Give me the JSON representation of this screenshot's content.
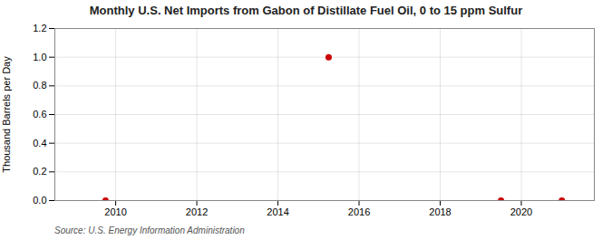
{
  "chart_data": {
    "type": "scatter",
    "title": "Monthly U.S. Net Imports from Gabon of Distillate Fuel Oil, 0 to 15 ppm Sulfur",
    "ylabel": "Thousand Barrels per Day",
    "annotation": "Source: U.S. Energy Information Administration",
    "x": [
      2009.75,
      2015.25,
      2019.5,
      2021.0
    ],
    "values": [
      0.0,
      1.0,
      0.0,
      0.0
    ],
    "color": "#cc0000",
    "xlim": [
      2008.5,
      2021.8
    ],
    "ylim": [
      0,
      1.2
    ],
    "xticks": [
      2010,
      2012,
      2014,
      2016,
      2018,
      2020
    ],
    "yticks": [
      {
        "value": 0,
        "label": "0.0"
      },
      0.2,
      0.4,
      0.6,
      0.8,
      {
        "value": 1,
        "label": "1.0"
      },
      1.2
    ],
    "grid": true
  }
}
